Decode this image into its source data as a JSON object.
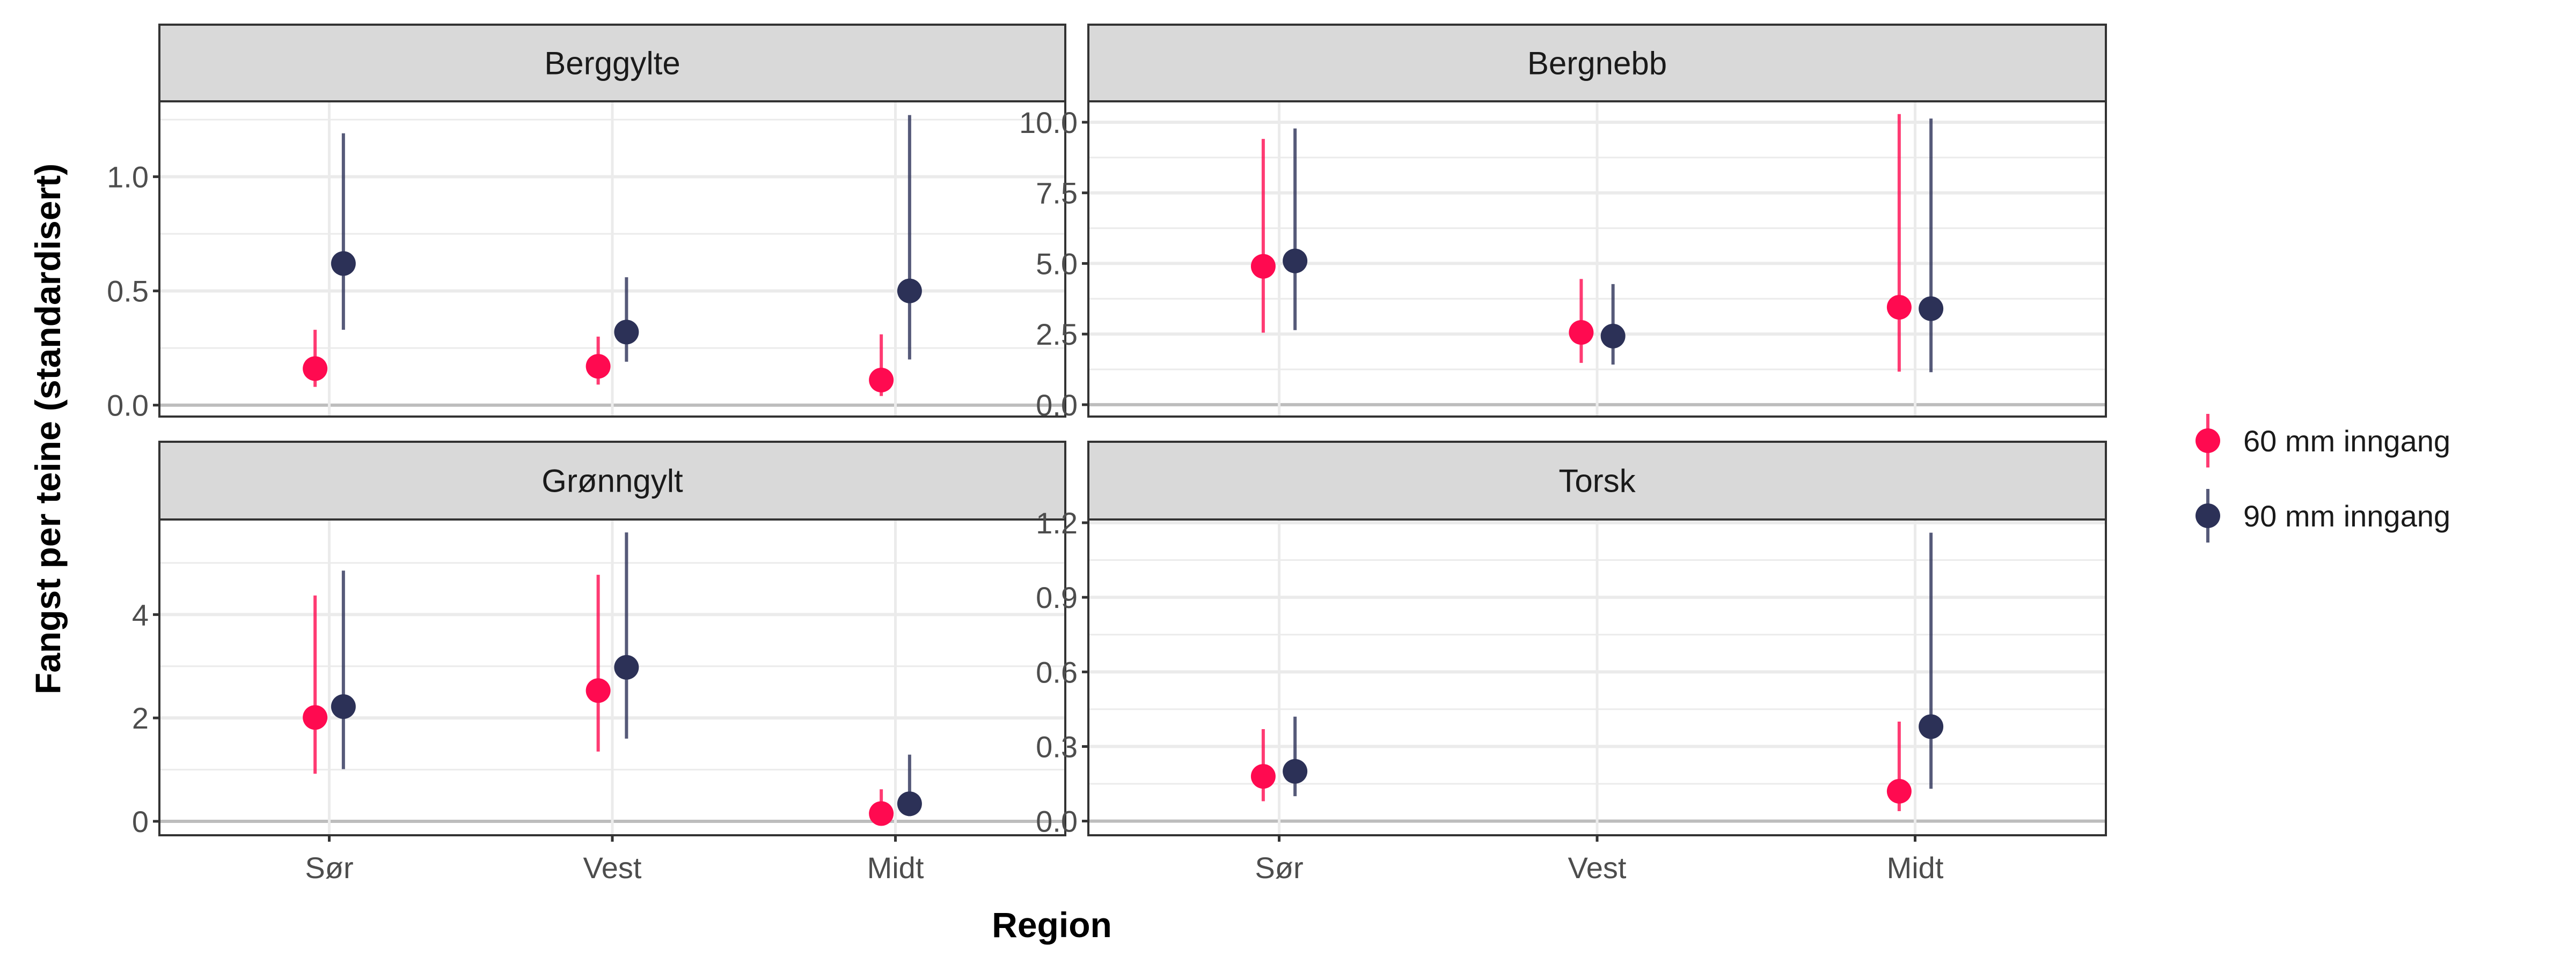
{
  "chart_data": {
    "type": "pointrange",
    "xlabel": "Region",
    "ylabel": "Fangst per teine (standardisert)",
    "categories": [
      "Sør",
      "Vest",
      "Midt"
    ],
    "legend": {
      "position": "right",
      "entries": [
        {
          "name": "60 mm inngang",
          "color": "#FF0A50"
        },
        {
          "name": "90 mm inngang",
          "color": "#2C3157"
        }
      ]
    },
    "grid": true,
    "panels": [
      {
        "title": "Berggylte",
        "ylim": [
          -0.05,
          1.33
        ],
        "yticks": [
          0,
          0.5,
          1.0
        ],
        "ytick_labels": [
          "0.0",
          "0.5",
          "1.0"
        ],
        "yminor": [
          0.25,
          0.75,
          1.25
        ],
        "series": [
          {
            "name": "60 mm inngang",
            "points": [
              {
                "x": "Sør",
                "y": 0.16,
                "lo": 0.08,
                "hi": 0.33
              },
              {
                "x": "Vest",
                "y": 0.17,
                "lo": 0.09,
                "hi": 0.3
              },
              {
                "x": "Midt",
                "y": 0.11,
                "lo": 0.04,
                "hi": 0.31
              }
            ]
          },
          {
            "name": "90 mm inngang",
            "points": [
              {
                "x": "Sør",
                "y": 0.62,
                "lo": 0.33,
                "hi": 1.19
              },
              {
                "x": "Vest",
                "y": 0.32,
                "lo": 0.19,
                "hi": 0.56
              },
              {
                "x": "Midt",
                "y": 0.5,
                "lo": 0.2,
                "hi": 1.27
              }
            ]
          }
        ]
      },
      {
        "title": "Bergnebb",
        "ylim": [
          -0.42,
          10.74
        ],
        "yticks": [
          0,
          2.5,
          5,
          7.5,
          10
        ],
        "ytick_labels": [
          "0.0",
          "2.5",
          "5.0",
          "7.5",
          "10.0"
        ],
        "yminor": [
          1.25,
          3.75,
          6.25,
          8.75
        ],
        "series": [
          {
            "name": "60 mm inngang",
            "points": [
              {
                "x": "Sør",
                "y": 4.9,
                "lo": 2.55,
                "hi": 9.41
              },
              {
                "x": "Vest",
                "y": 2.56,
                "lo": 1.48,
                "hi": 4.45
              },
              {
                "x": "Midt",
                "y": 3.45,
                "lo": 1.17,
                "hi": 10.29
              }
            ]
          },
          {
            "name": "90 mm inngang",
            "points": [
              {
                "x": "Sør",
                "y": 5.09,
                "lo": 2.64,
                "hi": 9.78
              },
              {
                "x": "Vest",
                "y": 2.43,
                "lo": 1.42,
                "hi": 4.27
              },
              {
                "x": "Midt",
                "y": 3.4,
                "lo": 1.15,
                "hi": 10.13
              }
            ]
          }
        ]
      },
      {
        "title": "Grønngylt",
        "ylim": [
          -0.27,
          5.84
        ],
        "yticks": [
          0,
          2,
          4
        ],
        "ytick_labels": [
          "0",
          "2",
          "4"
        ],
        "yminor": [
          1,
          3,
          5
        ],
        "series": [
          {
            "name": "60 mm inngang",
            "points": [
              {
                "x": "Sør",
                "y": 2.01,
                "lo": 0.92,
                "hi": 4.37
              },
              {
                "x": "Vest",
                "y": 2.53,
                "lo": 1.35,
                "hi": 4.77
              },
              {
                "x": "Midt",
                "y": 0.15,
                "lo": 0.02,
                "hi": 0.62
              }
            ]
          },
          {
            "name": "90 mm inngang",
            "points": [
              {
                "x": "Sør",
                "y": 2.22,
                "lo": 1.01,
                "hi": 4.85
              },
              {
                "x": "Vest",
                "y": 2.98,
                "lo": 1.6,
                "hi": 5.59
              },
              {
                "x": "Midt",
                "y": 0.34,
                "lo": 0.1,
                "hi": 1.29
              }
            ]
          }
        ]
      },
      {
        "title": "Torsk",
        "ylim": [
          -0.057,
          1.213
        ],
        "yticks": [
          0,
          0.3,
          0.6,
          0.9,
          1.2
        ],
        "ytick_labels": [
          "0.0",
          "0.3",
          "0.6",
          "0.9",
          "1.2"
        ],
        "yminor": [
          0.15,
          0.45,
          0.75,
          1.05
        ],
        "series": [
          {
            "name": "60 mm inngang",
            "points": [
              {
                "x": "Sør",
                "y": 0.18,
                "lo": 0.08,
                "hi": 0.37
              },
              {
                "x": "Midt",
                "y": 0.12,
                "lo": 0.04,
                "hi": 0.4
              }
            ]
          },
          {
            "name": "90 mm inngang",
            "points": [
              {
                "x": "Sør",
                "y": 0.2,
                "lo": 0.1,
                "hi": 0.42
              },
              {
                "x": "Midt",
                "y": 0.38,
                "lo": 0.13,
                "hi": 1.16
              }
            ]
          }
        ]
      }
    ]
  }
}
